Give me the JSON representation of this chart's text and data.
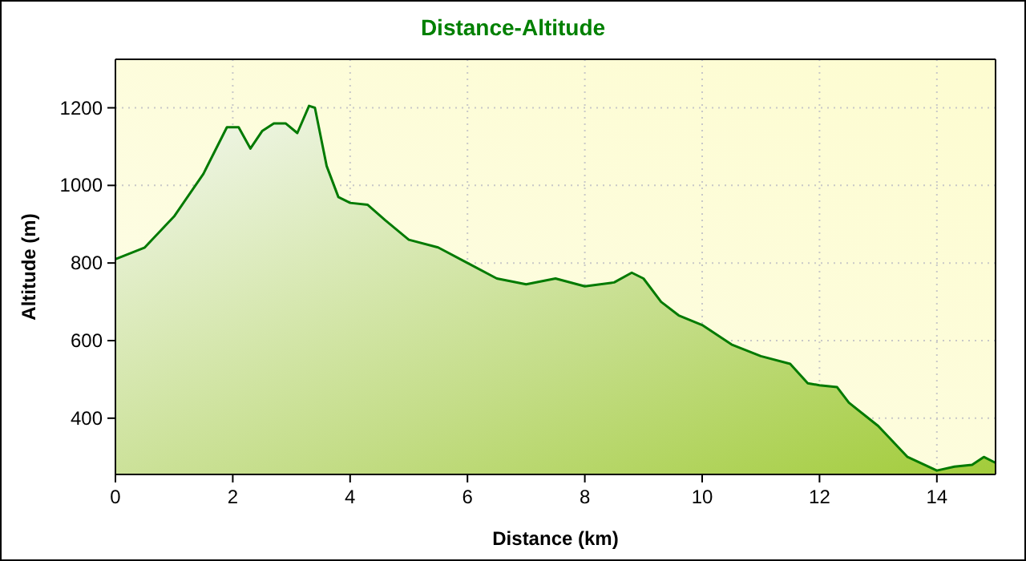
{
  "chart_data": {
    "type": "area",
    "title": "Distance-Altitude",
    "xlabel": "Distance (km)",
    "ylabel": "Altitude (m)",
    "x": [
      0,
      0.5,
      1,
      1.5,
      1.9,
      2.1,
      2.3,
      2.5,
      2.7,
      2.9,
      3.1,
      3.3,
      3.4,
      3.6,
      3.8,
      4,
      4.3,
      4.6,
      5,
      5.5,
      6,
      6.5,
      7,
      7.5,
      8,
      8.5,
      8.8,
      9,
      9.3,
      9.6,
      10,
      10.5,
      11,
      11.5,
      11.8,
      12,
      12.3,
      12.5,
      13,
      13.5,
      14,
      14.3,
      14.6,
      14.8,
      15
    ],
    "series": [
      {
        "color": "#007a00",
        "values": [
          810,
          840,
          920,
          1030,
          1150,
          1150,
          1095,
          1140,
          1160,
          1160,
          1135,
          1205,
          1200,
          1050,
          970,
          955,
          950,
          910,
          860,
          840,
          800,
          760,
          745,
          760,
          740,
          750,
          775,
          760,
          700,
          665,
          640,
          590,
          560,
          540,
          490,
          485,
          480,
          440,
          380,
          300,
          265,
          275,
          280,
          300,
          285
        ]
      }
    ],
    "xlim": [
      0,
      15
    ],
    "xticks": [
      0,
      2,
      4,
      6,
      8,
      10,
      12,
      14
    ],
    "ylim": [
      255,
      1325
    ],
    "yticks": [
      400,
      600,
      800,
      1000,
      1200
    ],
    "grid": true
  }
}
